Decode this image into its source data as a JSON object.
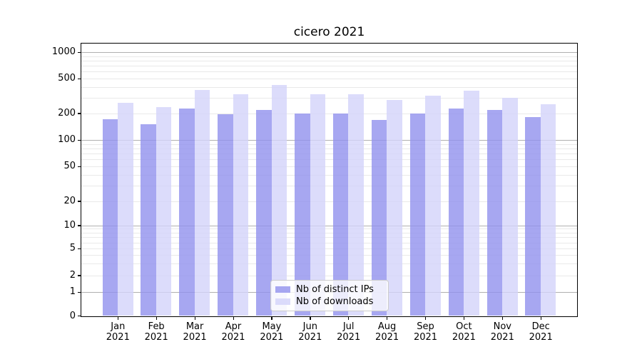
{
  "figure": {
    "background": "#ffffff",
    "text_color": "#000000",
    "grid_major_color": "#b0b0b0",
    "grid_minor_color": "#e9e9e9"
  },
  "chart_data": {
    "type": "bar",
    "title": "cicero 2021",
    "categories": [
      "Jan 2021",
      "Feb 2021",
      "Mar 2021",
      "Apr 2021",
      "May 2021",
      "Jun 2021",
      "Jul 2021",
      "Aug 2021",
      "Sep 2021",
      "Oct 2021",
      "Nov 2021",
      "Dec 2021"
    ],
    "series": [
      {
        "name": "Nb of distinct IPs",
        "color": "#9191ee",
        "alpha": 0.8,
        "values": [
          170,
          150,
          225,
          195,
          220,
          200,
          200,
          168,
          199,
          228,
          220,
          180
        ]
      },
      {
        "name": "Nb of downloads",
        "color": "#d3d3fa",
        "alpha": 0.8,
        "values": [
          265,
          235,
          370,
          330,
          420,
          332,
          328,
          285,
          320,
          362,
          298,
          255
        ]
      }
    ],
    "xlabel": "",
    "ylabel": "",
    "yscale": "symlog",
    "y_ticks": [
      0,
      1,
      2,
      5,
      10,
      20,
      50,
      100,
      200,
      500,
      1000
    ],
    "ylim": [
      0,
      1286
    ],
    "grid": true,
    "legend_position": "lower center"
  }
}
